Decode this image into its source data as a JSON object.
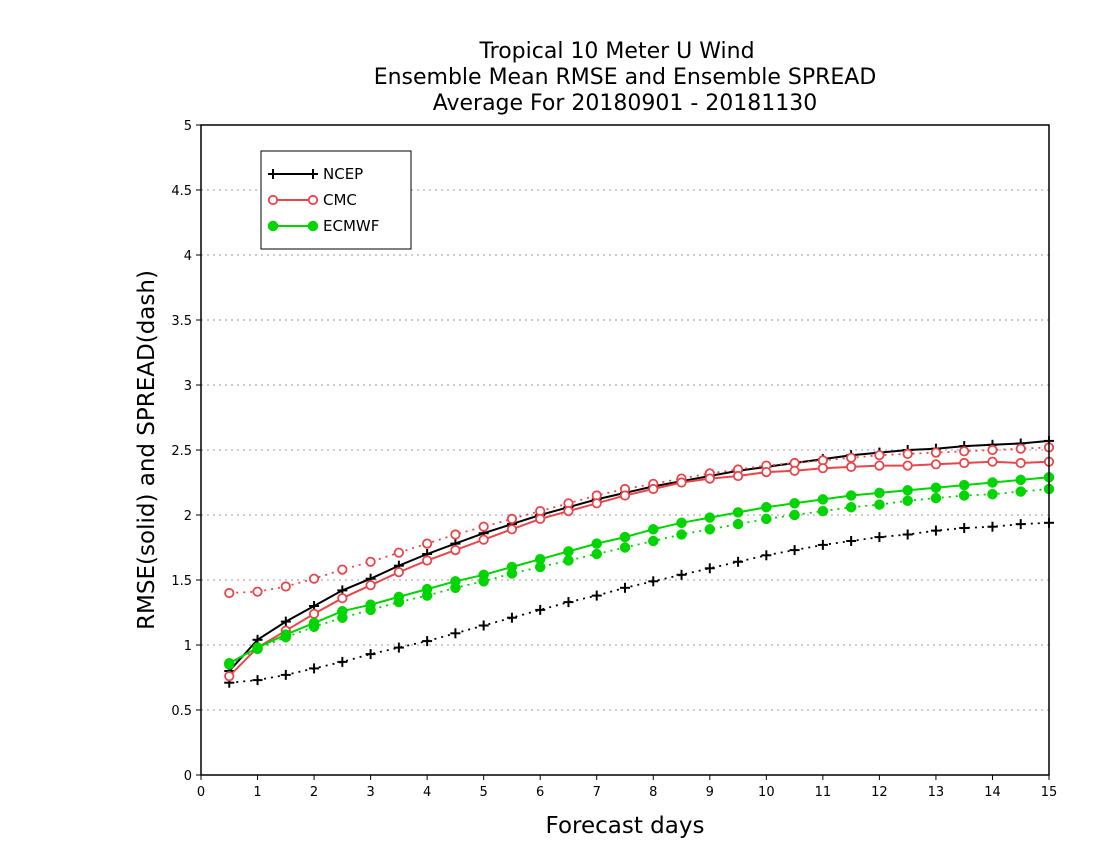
{
  "chart_data": {
    "type": "line",
    "title": [
      "Tropical 10 Meter U Wind",
      "Ensemble Mean RMSE and Ensemble SPREAD",
      "Average For 20180901 - 20181130"
    ],
    "xlabel": "Forecast days",
    "ylabel": "RMSE(solid) and SPREAD(dash)",
    "xlim": [
      0,
      15
    ],
    "ylim": [
      0,
      5
    ],
    "x_ticks": [
      "0",
      "1",
      "2",
      "3",
      "4",
      "5",
      "6",
      "7",
      "8",
      "9",
      "10",
      "11",
      "12",
      "13",
      "14",
      "15"
    ],
    "y_ticks": [
      "0",
      "0.5",
      "1",
      "1.5",
      "2",
      "2.5",
      "3",
      "3.5",
      "4",
      "4.5",
      "5"
    ],
    "grid": "horizontal dotted",
    "legend_position": "top-left",
    "x": [
      0.5,
      1,
      1.5,
      2,
      2.5,
      3,
      3.5,
      4,
      4.5,
      5,
      5.5,
      6,
      6.5,
      7,
      7.5,
      8,
      8.5,
      9,
      9.5,
      10,
      10.5,
      11,
      11.5,
      12,
      12.5,
      13,
      13.5,
      14,
      14.5,
      15
    ],
    "series": [
      {
        "name": "NCEP",
        "color": "#000000",
        "marker": "plus",
        "rmse": [
          0.8,
          1.04,
          1.18,
          1.3,
          1.42,
          1.51,
          1.61,
          1.7,
          1.78,
          1.86,
          1.93,
          2.0,
          2.06,
          2.12,
          2.17,
          2.22,
          2.26,
          2.3,
          2.34,
          2.37,
          2.4,
          2.43,
          2.46,
          2.48,
          2.5,
          2.51,
          2.53,
          2.54,
          2.55,
          2.57
        ],
        "spread": [
          0.71,
          0.73,
          0.77,
          0.82,
          0.87,
          0.93,
          0.98,
          1.03,
          1.09,
          1.15,
          1.21,
          1.27,
          1.33,
          1.38,
          1.44,
          1.49,
          1.54,
          1.59,
          1.64,
          1.69,
          1.73,
          1.77,
          1.8,
          1.83,
          1.85,
          1.88,
          1.9,
          1.91,
          1.93,
          1.94
        ]
      },
      {
        "name": "CMC",
        "color": "#e8464b",
        "marker": "open-circle",
        "rmse": [
          0.76,
          0.98,
          1.11,
          1.24,
          1.36,
          1.46,
          1.56,
          1.65,
          1.73,
          1.81,
          1.89,
          1.97,
          2.03,
          2.09,
          2.15,
          2.2,
          2.25,
          2.28,
          2.3,
          2.33,
          2.34,
          2.36,
          2.37,
          2.38,
          2.38,
          2.39,
          2.4,
          2.41,
          2.4,
          2.41
        ],
        "spread": [
          1.4,
          1.41,
          1.45,
          1.51,
          1.58,
          1.64,
          1.71,
          1.78,
          1.85,
          1.91,
          1.97,
          2.03,
          2.09,
          2.15,
          2.2,
          2.24,
          2.28,
          2.32,
          2.35,
          2.38,
          2.4,
          2.42,
          2.44,
          2.46,
          2.47,
          2.48,
          2.49,
          2.5,
          2.51,
          2.52
        ]
      },
      {
        "name": "ECMWF",
        "color": "#00d500",
        "marker": "filled-circle",
        "rmse": [
          0.86,
          0.98,
          1.08,
          1.17,
          1.26,
          1.31,
          1.37,
          1.43,
          1.49,
          1.54,
          1.6,
          1.66,
          1.72,
          1.78,
          1.83,
          1.89,
          1.94,
          1.98,
          2.02,
          2.06,
          2.09,
          2.12,
          2.15,
          2.17,
          2.19,
          2.21,
          2.23,
          2.25,
          2.27,
          2.29
        ],
        "spread": [
          0.85,
          0.97,
          1.06,
          1.14,
          1.21,
          1.27,
          1.33,
          1.38,
          1.44,
          1.49,
          1.55,
          1.6,
          1.65,
          1.7,
          1.75,
          1.8,
          1.85,
          1.89,
          1.93,
          1.97,
          2.0,
          2.03,
          2.06,
          2.08,
          2.11,
          2.13,
          2.15,
          2.16,
          2.18,
          2.2
        ]
      }
    ]
  }
}
